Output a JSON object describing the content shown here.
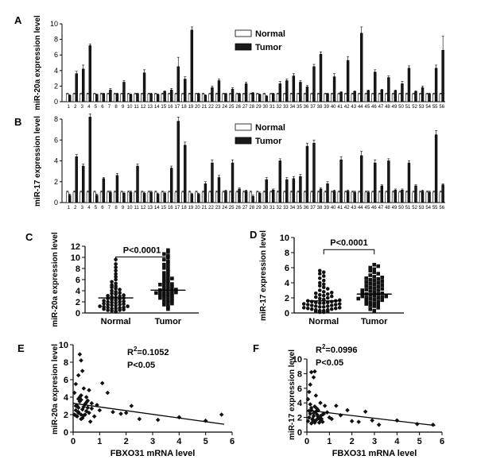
{
  "chart_data": [
    {
      "panel": "A",
      "type": "bar",
      "ylabel": "miR-20a expression level",
      "ylim": [
        0,
        10
      ],
      "yticks": [
        0,
        2,
        4,
        6,
        8,
        10
      ],
      "categories": [
        "1",
        "2",
        "3",
        "4",
        "5",
        "6",
        "7",
        "8",
        "9",
        "10",
        "11",
        "12",
        "13",
        "14",
        "15",
        "16",
        "17",
        "18",
        "19",
        "20",
        "21",
        "22",
        "23",
        "24",
        "25",
        "26",
        "27",
        "28",
        "29",
        "30",
        "31",
        "32",
        "33",
        "34",
        "35",
        "36",
        "37",
        "38",
        "39",
        "40",
        "41",
        "42",
        "43",
        "44",
        "45",
        "46",
        "47",
        "48",
        "49",
        "50",
        "51",
        "52",
        "53",
        "54",
        "55",
        "56"
      ],
      "series": [
        {
          "name": "Normal",
          "color": "#ffffff",
          "values": [
            1,
            1,
            1,
            1,
            1,
            1,
            1,
            1,
            1,
            1,
            1,
            1,
            1,
            1,
            1,
            1,
            1,
            1,
            1,
            1,
            1,
            1,
            1,
            1,
            1,
            1,
            1,
            1,
            1,
            1,
            1,
            1,
            1,
            1,
            1,
            1,
            1,
            1,
            1,
            1,
            1,
            1,
            1,
            1,
            1,
            1,
            1,
            1,
            1,
            1,
            1,
            1,
            1,
            1,
            1,
            1
          ],
          "errors": [
            0.1,
            0.1,
            0.1,
            0.1,
            0.1,
            0.1,
            0.1,
            0.1,
            0.1,
            0.1,
            0.1,
            0.1,
            0.1,
            0.1,
            0.1,
            0.1,
            0.1,
            0.1,
            0.1,
            0.1,
            0.1,
            0.1,
            0.1,
            0.1,
            0.1,
            0.1,
            0.1,
            0.1,
            0.1,
            0.1,
            0.1,
            0.1,
            0.1,
            0.1,
            0.1,
            0.1,
            0.1,
            0.1,
            0.1,
            0.1,
            0.1,
            0.1,
            0.1,
            0.1,
            0.1,
            0.1,
            0.1,
            0.1,
            0.1,
            0.1,
            0.1,
            0.1,
            0.1,
            0.1,
            0.1,
            0.1
          ]
        },
        {
          "name": "Tumor",
          "color": "#1a1a1a",
          "values": [
            0.8,
            3.6,
            4.2,
            7.2,
            0.9,
            1,
            1.5,
            1,
            2.5,
            0.9,
            1,
            3.7,
            1,
            0.9,
            1.3,
            1.5,
            4.5,
            2.9,
            9.2,
            1,
            0.8,
            1.8,
            2.7,
            1,
            1.6,
            1,
            2.3,
            1.1,
            0.9,
            0.7,
            1,
            2.3,
            2.7,
            3.3,
            2.5,
            1.9,
            4.5,
            6.1,
            1,
            3.2,
            1.2,
            5.3,
            1.3,
            8.8,
            1.4,
            3.8,
            1.5,
            3.1,
            1.4,
            2.3,
            4.3,
            1.3,
            1.8,
            1,
            4.3,
            6.6
          ],
          "errors": [
            0.1,
            0.3,
            0.5,
            0.2,
            0.1,
            0.1,
            0.2,
            0.1,
            0.2,
            0.1,
            0.1,
            0.4,
            0.1,
            0.1,
            0.1,
            0.2,
            1.2,
            0.3,
            0.4,
            0.1,
            0.1,
            0.2,
            0.2,
            0.1,
            0.2,
            0.1,
            0.2,
            0.1,
            0.1,
            0.1,
            0.1,
            0.3,
            0.2,
            0.3,
            0.2,
            0.2,
            0.3,
            0.3,
            0.1,
            0.4,
            0.1,
            0.5,
            0.1,
            0.8,
            0.1,
            0.3,
            0.1,
            0.2,
            0.1,
            0.3,
            0.3,
            0.1,
            0.2,
            0.1,
            0.4,
            1.8
          ]
        }
      ],
      "legend": "top-center"
    },
    {
      "panel": "B",
      "type": "bar",
      "ylabel": "miR-17 expression level",
      "ylim": [
        0,
        8
      ],
      "yticks": [
        0,
        2,
        4,
        6,
        8
      ],
      "categories": [
        "1",
        "2",
        "3",
        "4",
        "5",
        "6",
        "7",
        "8",
        "9",
        "10",
        "11",
        "12",
        "13",
        "14",
        "15",
        "16",
        "17",
        "18",
        "19",
        "20",
        "21",
        "22",
        "23",
        "24",
        "25",
        "26",
        "27",
        "28",
        "29",
        "30",
        "31",
        "32",
        "33",
        "34",
        "35",
        "36",
        "37",
        "38",
        "39",
        "40",
        "41",
        "42",
        "43",
        "44",
        "45",
        "46",
        "47",
        "48",
        "49",
        "50",
        "51",
        "52",
        "53",
        "54",
        "55",
        "56"
      ],
      "series": [
        {
          "name": "Normal",
          "color": "#ffffff",
          "values": [
            1,
            1,
            1,
            1,
            1,
            1,
            1,
            1,
            1,
            1,
            1,
            1,
            1,
            1,
            1,
            1,
            1,
            1,
            1,
            1,
            1,
            1,
            1,
            1,
            1,
            1,
            1,
            1,
            1,
            1,
            1,
            1,
            1,
            1,
            1,
            1,
            1,
            1,
            1,
            1,
            1,
            1,
            1,
            1,
            1,
            1,
            1,
            1,
            1,
            1,
            1,
            1,
            1,
            1,
            1,
            1
          ],
          "errors": [
            0.1,
            0.1,
            0.1,
            0.1,
            0.1,
            0.1,
            0.1,
            0.1,
            0.1,
            0.1,
            0.1,
            0.1,
            0.1,
            0.1,
            0.1,
            0.1,
            0.1,
            0.1,
            0.1,
            0.1,
            0.1,
            0.1,
            0.1,
            0.1,
            0.1,
            0.1,
            0.1,
            0.1,
            0.1,
            0.1,
            0.1,
            0.1,
            0.1,
            0.1,
            0.1,
            0.1,
            0.1,
            0.1,
            0.1,
            0.1,
            0.1,
            0.1,
            0.1,
            0.1,
            0.1,
            0.1,
            0.1,
            0.1,
            0.1,
            0.1,
            0.1,
            0.1,
            0.1,
            0.1,
            0.1,
            0.1
          ]
        },
        {
          "name": "Tumor",
          "color": "#1a1a1a",
          "values": [
            0.7,
            4.4,
            3.5,
            8.2,
            0.7,
            2.3,
            1,
            2.6,
            0.9,
            1,
            3.5,
            0.9,
            1,
            0.8,
            0.9,
            3.3,
            7.8,
            5.5,
            0.8,
            0.8,
            1.8,
            3.8,
            2.4,
            1.1,
            3.8,
            1.3,
            1.1,
            0.6,
            0.9,
            2.2,
            1.2,
            4,
            2.2,
            2.3,
            2.5,
            5.4,
            5.7,
            1.3,
            1.8,
            1.1,
            4.1,
            1.1,
            1,
            4.5,
            1,
            3.8,
            1.6,
            4,
            1.2,
            1.2,
            3.8,
            1.6,
            1.1,
            1,
            6.5,
            1.7
          ],
          "errors": [
            0.1,
            0.2,
            0.2,
            0.3,
            0.1,
            0.1,
            0.1,
            0.2,
            0.1,
            0.1,
            0.2,
            0.1,
            0.1,
            0.1,
            0.1,
            0.2,
            0.4,
            0.3,
            0.1,
            0.1,
            0.2,
            0.3,
            0.2,
            0.1,
            0.3,
            0.1,
            0.1,
            0.1,
            0.1,
            0.2,
            0.1,
            0.2,
            0.2,
            0.2,
            0.2,
            0.3,
            0.3,
            0.1,
            0.2,
            0.1,
            0.3,
            0.1,
            0.1,
            0.4,
            0.1,
            0.3,
            0.1,
            0.2,
            0.1,
            0.1,
            0.2,
            0.1,
            0.1,
            0.1,
            0.4,
            0.1
          ]
        }
      ],
      "legend": "top-center"
    },
    {
      "panel": "C",
      "type": "scatter",
      "ylabel": "miR-20a expression level",
      "ylim": [
        0,
        12
      ],
      "yticks": [
        0,
        2,
        4,
        6,
        8,
        10,
        12
      ],
      "categories": [
        "Normal",
        "Tumor"
      ],
      "annotation": "P<0.0001",
      "series": [
        {
          "name": "Normal",
          "marker": "circle",
          "mean": 2.7,
          "values": [
            0.2,
            0.3,
            0.4,
            0.5,
            0.5,
            0.6,
            0.7,
            0.8,
            0.8,
            0.9,
            1.0,
            1.0,
            1.1,
            1.2,
            1.2,
            1.3,
            1.4,
            1.5,
            1.5,
            1.6,
            1.7,
            1.8,
            1.9,
            2.0,
            2.0,
            2.1,
            2.2,
            2.3,
            2.4,
            2.5,
            2.6,
            2.7,
            2.8,
            2.9,
            3.0,
            3.1,
            3.2,
            3.4,
            3.5,
            3.6,
            3.8,
            4.0,
            4.2,
            4.4,
            4.6,
            4.8,
            5.0,
            5.3,
            5.6,
            6.0,
            6.5,
            7.0,
            7.6,
            8.2,
            8.8,
            9.6
          ]
        },
        {
          "name": "Tumor",
          "marker": "square",
          "mean": 4.1,
          "values": [
            0.7,
            1.0,
            1.3,
            1.5,
            1.7,
            1.9,
            2.0,
            2.2,
            2.3,
            2.5,
            2.6,
            2.7,
            2.9,
            3.0,
            3.1,
            3.2,
            3.3,
            3.4,
            3.5,
            3.6,
            3.7,
            3.8,
            3.9,
            4.0,
            4.1,
            4.2,
            4.3,
            4.5,
            4.6,
            4.8,
            5.0,
            5.2,
            5.4,
            5.6,
            5.8,
            6.0,
            6.3,
            6.6,
            6.9,
            7.2,
            7.5,
            7.8,
            8.1,
            8.4,
            8.7,
            9.0,
            9.3,
            9.6,
            10.0,
            10.3,
            10.6,
            11.0,
            11.3,
            6.2,
            5.1,
            3.6
          ]
        }
      ]
    },
    {
      "panel": "D",
      "type": "scatter",
      "ylabel": "miR-17 expression level",
      "ylim": [
        0,
        10
      ],
      "yticks": [
        0,
        2,
        4,
        6,
        8,
        10
      ],
      "categories": [
        "Normal",
        "Tumor"
      ],
      "annotation": "P<0.0001",
      "series": [
        {
          "name": "Normal",
          "marker": "circle",
          "mean": 1.6,
          "values": [
            0.1,
            0.1,
            0.2,
            0.2,
            0.3,
            0.3,
            0.4,
            0.4,
            0.5,
            0.5,
            0.6,
            0.6,
            0.7,
            0.7,
            0.8,
            0.8,
            0.9,
            0.9,
            1.0,
            1.0,
            1.1,
            1.1,
            1.2,
            1.2,
            1.3,
            1.3,
            1.4,
            1.4,
            1.5,
            1.5,
            1.6,
            1.6,
            1.7,
            1.8,
            1.9,
            2.0,
            2.1,
            2.2,
            2.3,
            2.4,
            2.5,
            2.6,
            2.7,
            2.8,
            3.0,
            3.2,
            3.4,
            3.6,
            3.8,
            4.0,
            4.3,
            4.6,
            4.9,
            5.2,
            5.4,
            5.6
          ]
        },
        {
          "name": "Tumor",
          "marker": "square",
          "mean": 2.5,
          "values": [
            0.3,
            0.5,
            0.7,
            0.9,
            1.0,
            1.1,
            1.2,
            1.3,
            1.4,
            1.5,
            1.6,
            1.7,
            1.8,
            1.9,
            2.0,
            2.0,
            2.1,
            2.2,
            2.3,
            2.4,
            2.5,
            2.5,
            2.6,
            2.7,
            2.8,
            2.9,
            3.0,
            3.1,
            3.2,
            3.3,
            3.4,
            3.5,
            3.6,
            3.7,
            3.8,
            3.9,
            4.0,
            4.1,
            4.2,
            4.3,
            4.4,
            4.5,
            4.6,
            4.7,
            4.8,
            5.0,
            5.2,
            5.4,
            5.6,
            5.8,
            6.0,
            6.2,
            6.4,
            2.2,
            1.9,
            3.0
          ]
        }
      ]
    },
    {
      "panel": "E",
      "type": "scatter",
      "xlabel": "FBXO31 mRNA level",
      "ylabel": "miR-20a expresion level",
      "xlim": [
        0,
        6
      ],
      "ylim": [
        0,
        10
      ],
      "xticks": [
        0,
        1,
        2,
        3,
        4,
        5,
        6
      ],
      "yticks": [
        0,
        2,
        4,
        6,
        8,
        10
      ],
      "annotation_r2_prefix": "R",
      "annotation_r2_sup": "2",
      "annotation_r2_value": "=0.1052",
      "annotation_p": "P<0.05",
      "regression_line": {
        "x": [
          0,
          5.7
        ],
        "y": [
          3.3,
          0.9
        ]
      },
      "points": {
        "x": [
          0.05,
          0.1,
          0.1,
          0.15,
          0.2,
          0.2,
          0.25,
          0.3,
          0.3,
          0.35,
          0.05,
          0.1,
          0.2,
          0.25,
          0.3,
          0.35,
          0.4,
          0.45,
          0.5,
          0.5,
          0.55,
          0.6,
          0.15,
          0.2,
          0.3,
          0.4,
          0.5,
          0.6,
          0.7,
          0.8,
          0.9,
          1.0,
          1.1,
          1.3,
          1.5,
          1.8,
          2.0,
          2.2,
          2.5,
          3.2,
          4.0,
          5.0,
          5.6,
          0.1,
          0.2,
          0.35,
          0.45,
          0.55,
          0.65,
          0.7,
          0.25,
          0.3,
          0.4
        ],
        "y": [
          2.0,
          2.5,
          3.0,
          1.8,
          2.2,
          2.8,
          3.5,
          2.0,
          1.5,
          2.6,
          4.5,
          5.5,
          6.5,
          8.9,
          8.2,
          7.0,
          5.0,
          3.2,
          4.0,
          2.4,
          3.6,
          4.8,
          3.0,
          3.8,
          4.2,
          2.9,
          3.4,
          2.2,
          2.7,
          1.8,
          3.1,
          2.5,
          5.6,
          4.5,
          2.3,
          2.1,
          2.2,
          3.0,
          1.5,
          1.4,
          1.7,
          1.3,
          2.0,
          1.9,
          2.3,
          1.6,
          2.0,
          2.8,
          1.2,
          3.3,
          4.0,
          3.7,
          1.9
        ]
      }
    },
    {
      "panel": "F",
      "type": "scatter",
      "xlabel": "FBXO31 mRNA level",
      "ylabel": "miR-17 expression level",
      "xlim": [
        0,
        6
      ],
      "ylim": [
        0,
        10
      ],
      "xticks": [
        0,
        1,
        2,
        3,
        4,
        5,
        6
      ],
      "yticks": [
        0,
        2,
        4,
        6,
        8,
        10
      ],
      "annotation_r2_prefix": "R",
      "annotation_r2_sup": "2",
      "annotation_r2_value": "=0.0996",
      "annotation_p": "P<0.05",
      "regression_line": {
        "x": [
          0,
          5.7
        ],
        "y": [
          3.0,
          0.9
        ]
      },
      "points": {
        "x": [
          0.05,
          0.1,
          0.15,
          0.2,
          0.25,
          0.3,
          0.35,
          0.4,
          0.05,
          0.1,
          0.15,
          0.2,
          0.3,
          0.35,
          0.4,
          0.5,
          0.6,
          0.7,
          0.8,
          0.2,
          0.3,
          0.4,
          0.5,
          0.6,
          0.7,
          0.9,
          1.0,
          1.1,
          1.3,
          1.5,
          1.8,
          2.0,
          2.3,
          2.6,
          2.9,
          3.2,
          4.0,
          4.9,
          5.6,
          0.1,
          0.2,
          0.25,
          0.3,
          0.45,
          0.55,
          0.65,
          0.75,
          0.15,
          0.35,
          0.45,
          0.5,
          0.6
        ],
        "y": [
          1.5,
          2.0,
          2.5,
          3.0,
          1.8,
          2.2,
          3.5,
          1.6,
          4.5,
          5.5,
          6.5,
          8.2,
          7.5,
          8.3,
          5.0,
          3.0,
          4.0,
          2.4,
          3.6,
          1.2,
          1.5,
          2.8,
          1.9,
          2.2,
          1.4,
          2.7,
          2.0,
          1.8,
          3.6,
          2.3,
          3.0,
          1.5,
          1.4,
          2.8,
          1.6,
          1.0,
          1.6,
          1.1,
          1.0,
          2.9,
          3.3,
          1.7,
          2.6,
          3.2,
          1.3,
          1.8,
          2.5,
          3.8,
          1.3,
          2.4,
          2.1,
          1.7
        ]
      }
    }
  ]
}
